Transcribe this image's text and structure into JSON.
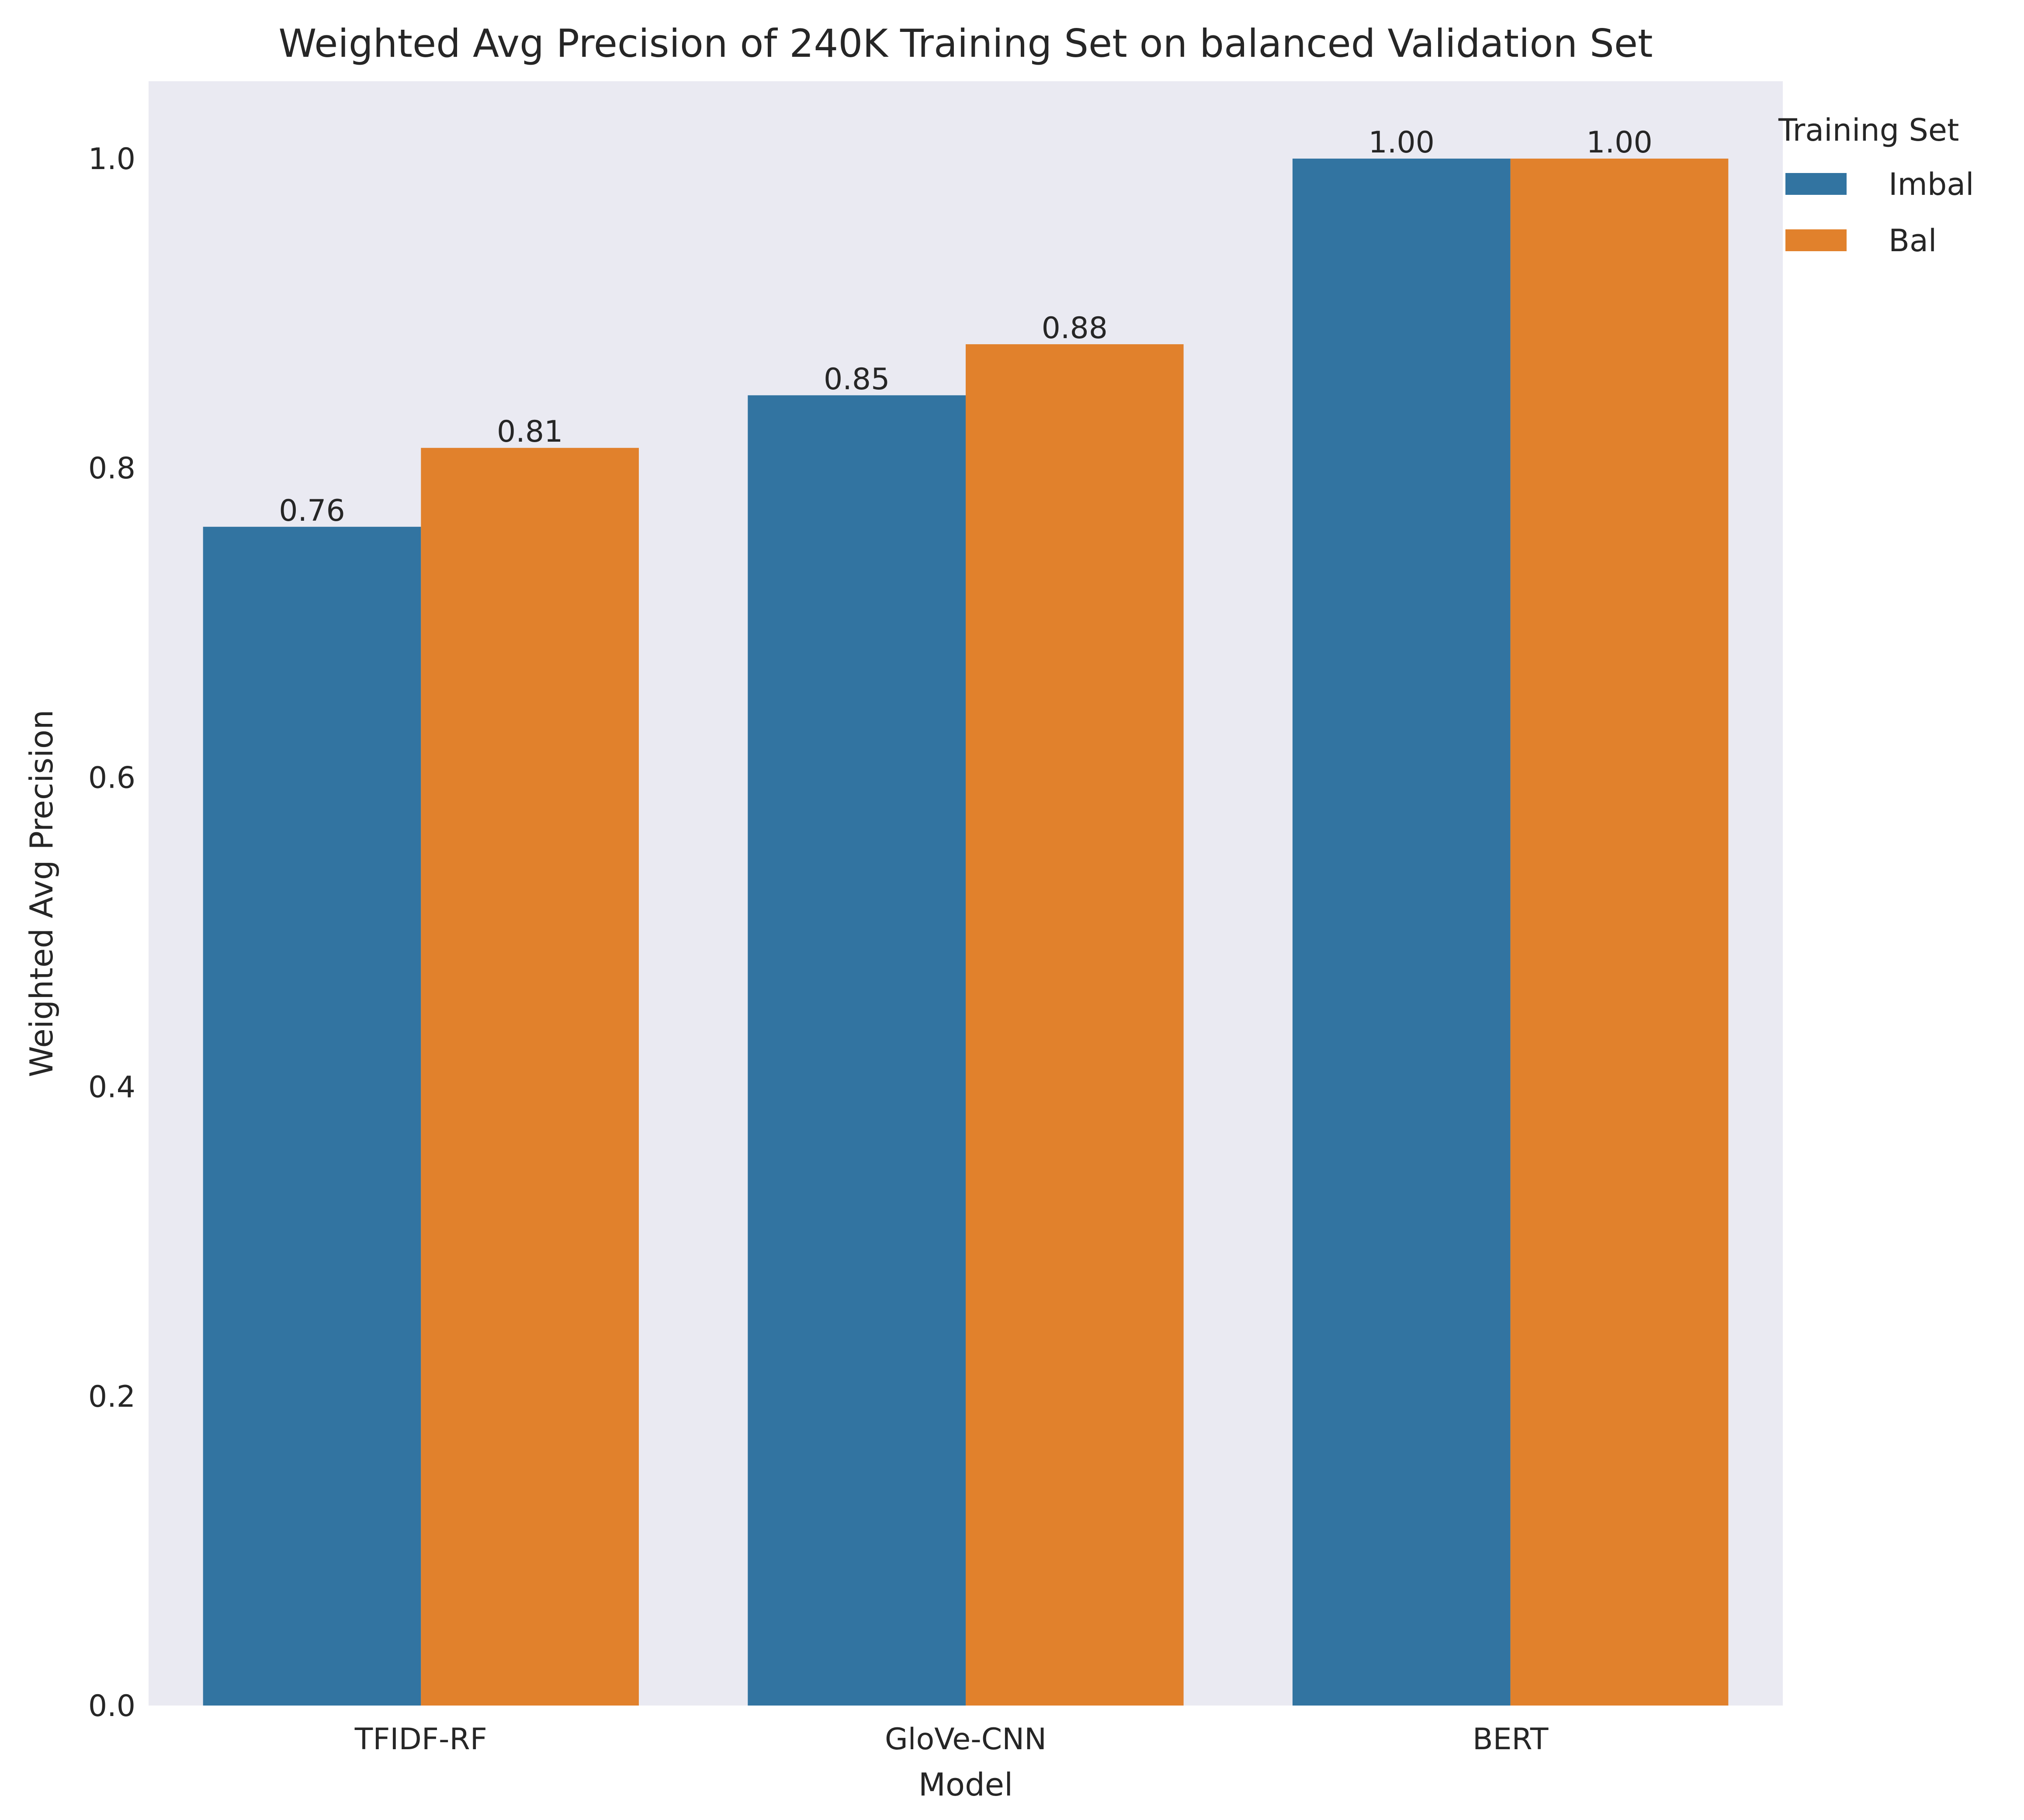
{
  "chart_data": {
    "type": "bar",
    "title": "Weighted Avg Precision of 240K Training Set on balanced Validation Set",
    "xlabel": "Model",
    "ylabel": "Weighted Avg Precision",
    "categories": [
      "TFIDF-RF",
      "GloVe-CNN",
      "BERT"
    ],
    "series": [
      {
        "name": "Imbal",
        "values": [
          0.762,
          0.847,
          1.0
        ],
        "labels": [
          "0.76",
          "0.85",
          "1.00"
        ],
        "color": "#3274a1"
      },
      {
        "name": "Bal",
        "values": [
          0.813,
          0.88,
          1.0
        ],
        "labels": [
          "0.81",
          "0.88",
          "1.00"
        ],
        "color": "#e1812c"
      }
    ],
    "ylim": [
      0,
      1.05
    ],
    "yticks": [
      "0.0",
      "0.2",
      "0.4",
      "0.6",
      "0.8",
      "1.0"
    ],
    "legend": {
      "title": "Training Set",
      "placement": "outside-top-right"
    },
    "plot_background": "#eaeaf2",
    "grid": false
  }
}
